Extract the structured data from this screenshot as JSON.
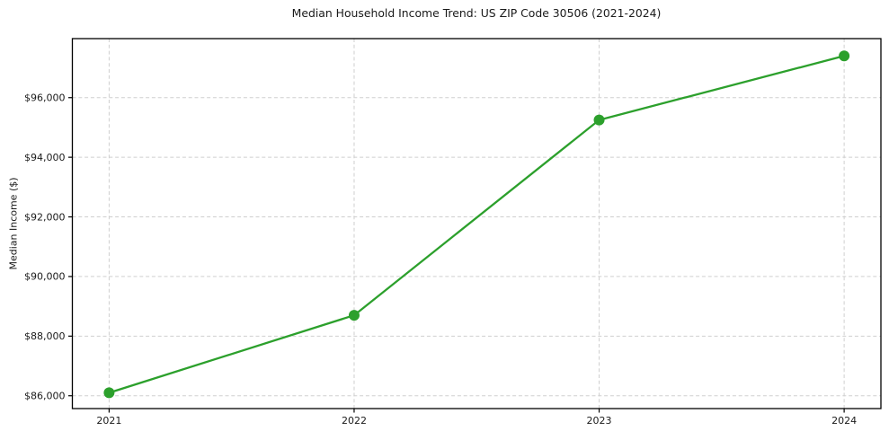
{
  "chart_data": {
    "type": "line",
    "title": "Median Household Income Trend: US ZIP Code 30506 (2021-2024)",
    "xlabel": "",
    "ylabel": "Median Income ($)",
    "x": [
      2021,
      2022,
      2023,
      2024
    ],
    "values": [
      86100,
      88700,
      95250,
      97400
    ],
    "xtick_labels": [
      "2021",
      "2022",
      "2023",
      "2024"
    ],
    "yticks": [
      86000,
      88000,
      90000,
      92000,
      94000,
      96000
    ],
    "ytick_labels": [
      "$86,000",
      "$88,000",
      "$90,000",
      "$92,000",
      "$94,000",
      "$96,000"
    ],
    "xlim": [
      2020.85,
      2024.15
    ],
    "ylim": [
      85570,
      97980
    ],
    "grid": {
      "visible": true,
      "style": "dashed",
      "axes": "both"
    },
    "legend_position": "none",
    "line_color": "#2ca02c",
    "marker": "circle",
    "grid_color": "#cfcfcf",
    "spine_color": "#000000",
    "text_color": "#1a1a1a",
    "background": "#ffffff"
  }
}
